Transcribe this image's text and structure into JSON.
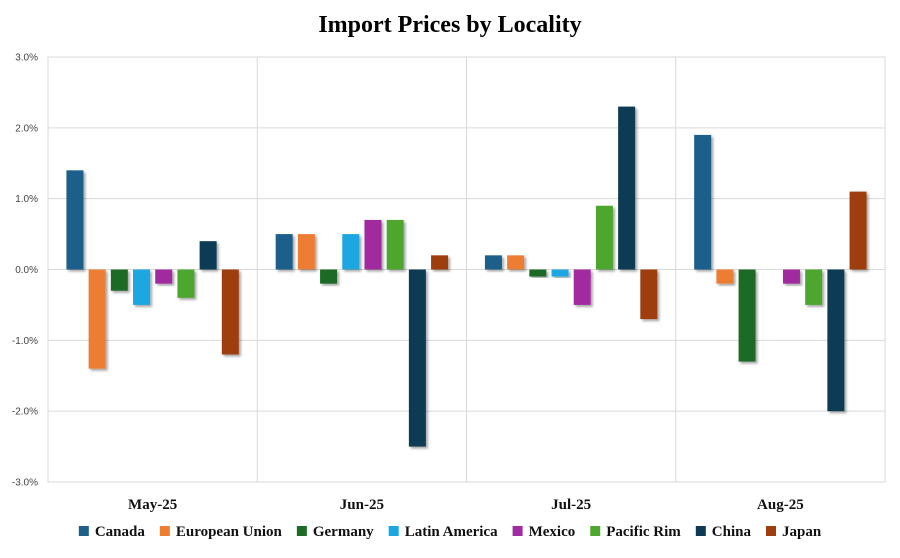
{
  "chart_data": {
    "type": "bar",
    "title": "Import Prices by Locality",
    "categories": [
      "May-25",
      "Jun-25",
      "Jul-25",
      "Aug-25"
    ],
    "ylim": [
      -3.0,
      3.0
    ],
    "ytick_values": [
      -3.0,
      -2.0,
      -1.0,
      0.0,
      1.0,
      2.0,
      3.0
    ],
    "ytick_labels": [
      "-3.0%",
      "-2.0%",
      "-1.0%",
      "0.0%",
      "1.0%",
      "2.0%",
      "3.0%"
    ],
    "grid": true,
    "legend_position": "bottom",
    "series": [
      {
        "name": "Canada",
        "color": "#1f5f8b",
        "values": [
          1.4,
          0.5,
          0.2,
          1.9
        ]
      },
      {
        "name": "European Union",
        "color": "#ed7d31",
        "values": [
          -1.4,
          0.5,
          0.2,
          -0.2
        ]
      },
      {
        "name": "Germany",
        "color": "#1e6b26",
        "values": [
          -0.3,
          -0.2,
          -0.1,
          -1.3
        ]
      },
      {
        "name": "Latin America",
        "color": "#1aa7e0",
        "values": [
          -0.5,
          0.5,
          -0.1,
          0.0
        ]
      },
      {
        "name": "Mexico",
        "color": "#a12b9f",
        "values": [
          -0.2,
          0.7,
          -0.5,
          -0.2
        ]
      },
      {
        "name": "Pacific Rim",
        "color": "#4ea72e",
        "values": [
          -0.4,
          0.7,
          0.9,
          -0.5
        ]
      },
      {
        "name": "China",
        "color": "#0d3a52",
        "values": [
          0.4,
          -2.5,
          2.3,
          -2.0
        ]
      },
      {
        "name": "Japan",
        "color": "#9e3e0e",
        "values": [
          -1.2,
          0.2,
          -0.7,
          1.1
        ]
      }
    ]
  }
}
